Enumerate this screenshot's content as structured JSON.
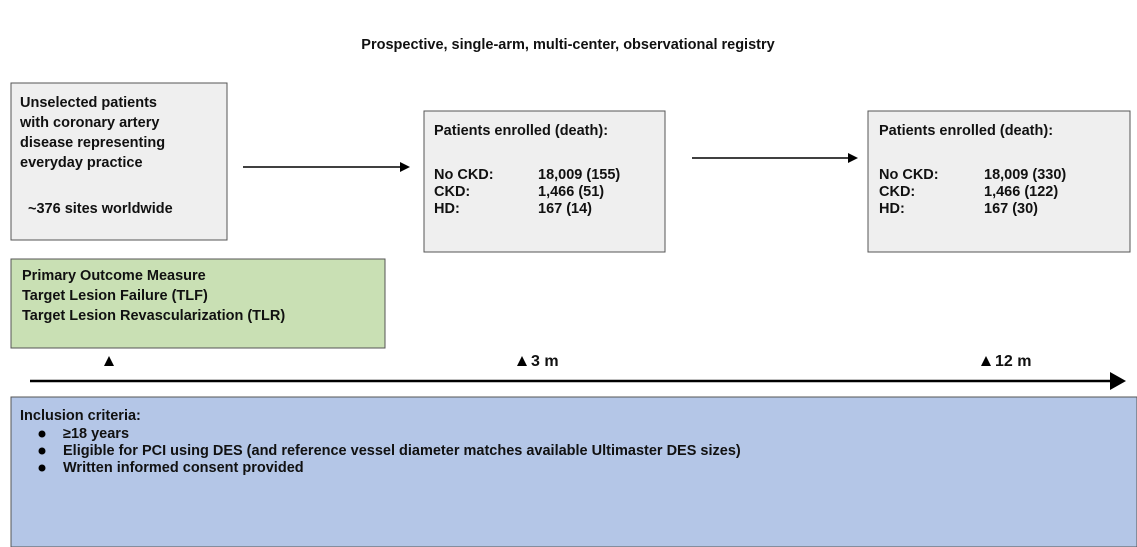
{
  "title": "Prospective, single-arm, multi-center, observational registry",
  "population": {
    "lines": [
      "Unselected patients",
      "with coronary artery",
      "disease representing",
      "everyday practice"
    ],
    "sites": "~376 sites worldwide"
  },
  "outcome": {
    "lines": [
      "Primary Outcome Measure",
      "Target Lesion Failure (TLF)",
      "Target Lesion Revascularization (TLR)"
    ]
  },
  "followups": [
    {
      "heading": "Patients enrolled (death):",
      "rows": [
        [
          "No CKD:",
          "18,009 (155)"
        ],
        [
          "CKD:",
          "1,466 (51)"
        ],
        [
          "HD:",
          "167 (14)"
        ]
      ],
      "time": "3 m"
    },
    {
      "heading": "Patients enrolled (death):",
      "rows": [
        [
          "No CKD:",
          "18,009 (330)"
        ],
        [
          "CKD:",
          "1,466 (122)"
        ],
        [
          "HD:",
          "167 (30)"
        ]
      ],
      "time": "12 m"
    }
  ],
  "inclusion": {
    "heading": "Inclusion criteria:",
    "items": [
      "≥18 years",
      "Eligible for PCI using DES (and reference vessel diameter matches available Ultimaster DES sizes)",
      "Written informed consent provided"
    ]
  }
}
